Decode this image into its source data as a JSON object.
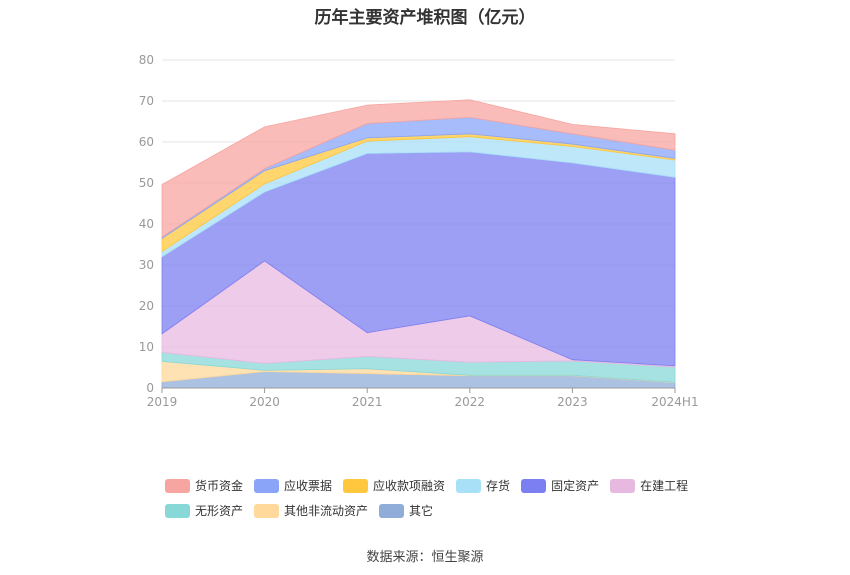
{
  "chart_data": {
    "type": "area",
    "stacked": true,
    "title": "历年主要资产堆积图（亿元）",
    "x": [
      "2019",
      "2020",
      "2021",
      "2022",
      "2023",
      "2024H1"
    ],
    "ylim": [
      0,
      80
    ],
    "yticks": [
      0,
      10,
      20,
      30,
      40,
      50,
      60,
      70,
      80
    ],
    "grid": true,
    "legend_position": "bottom",
    "series": [
      {
        "name": "其它",
        "color": "#8fadd8",
        "values": [
          1.5,
          4.0,
          3.5,
          3.0,
          3.0,
          1.3
        ]
      },
      {
        "name": "其他非流动资产",
        "color": "#ffd89b",
        "values": [
          5.0,
          0.3,
          1.2,
          0.1,
          0.1,
          0.1
        ]
      },
      {
        "name": "无形资产",
        "color": "#88d8d8",
        "values": [
          2.2,
          1.7,
          3.0,
          3.2,
          3.5,
          3.7
        ]
      },
      {
        "name": "在建工程",
        "color": "#e8b9e0",
        "values": [
          4.5,
          25.0,
          5.8,
          11.3,
          0.3,
          0.3
        ]
      },
      {
        "name": "固定资产",
        "color": "#7c7ff2",
        "values": [
          18.8,
          16.8,
          43.7,
          40.0,
          48.0,
          46.0
        ]
      },
      {
        "name": "存货",
        "color": "#a8e0f8",
        "values": [
          1.3,
          2.0,
          3.0,
          3.7,
          4.0,
          4.2
        ]
      },
      {
        "name": "应收款项融资",
        "color": "#ffc73e",
        "values": [
          3.2,
          3.2,
          0.8,
          0.7,
          0.6,
          0.4
        ]
      },
      {
        "name": "应收票据",
        "color": "#8aa5f8",
        "values": [
          0.3,
          0.5,
          3.5,
          4.0,
          2.5,
          2.0
        ]
      },
      {
        "name": "货币资金",
        "color": "#f7a5a0",
        "values": [
          12.8,
          10.2,
          4.5,
          4.3,
          2.3,
          4.0
        ]
      }
    ]
  },
  "legend": {
    "row1": [
      "货币资金",
      "应收票据",
      "应收款项融资",
      "存货",
      "固定资产",
      "在建工程"
    ],
    "row2": [
      "无形资产",
      "其他非流动资产",
      "其它"
    ],
    "colors_row1": [
      "#f7a5a0",
      "#8aa5f8",
      "#ffc73e",
      "#a8e0f8",
      "#7c7ff2",
      "#e8b9e0"
    ],
    "colors_row2": [
      "#88d8d8",
      "#ffd89b",
      "#8fadd8"
    ]
  },
  "source": "数据来源：恒生聚源"
}
